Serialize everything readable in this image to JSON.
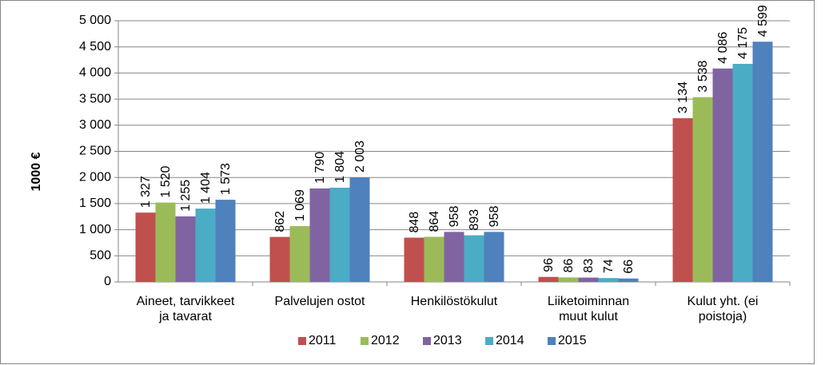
{
  "chart_data": {
    "type": "bar",
    "ylabel": "1000 €",
    "categories": [
      "Aineet, tarvikkeet\nja tavarat",
      "Palvelujen ostot",
      "Henkilöstökulut",
      "Liiketoiminnan\nmuut kulut",
      "Kulut yht. (ei\npoistoja)"
    ],
    "series": [
      {
        "name": "2011",
        "color": "#c0504d",
        "values": [
          1327,
          862,
          848,
          96,
          3134
        ],
        "value_labels": [
          "1 327",
          "862",
          "848",
          "96",
          "3 134"
        ]
      },
      {
        "name": "2012",
        "color": "#9bbb59",
        "values": [
          1520,
          1069,
          864,
          86,
          3538
        ],
        "value_labels": [
          "1 520",
          "1 069",
          "864",
          "86",
          "3 538"
        ]
      },
      {
        "name": "2013",
        "color": "#8064a2",
        "values": [
          1255,
          1790,
          958,
          83,
          4086
        ],
        "value_labels": [
          "1 255",
          "1 790",
          "958",
          "83",
          "4 086"
        ]
      },
      {
        "name": "2014",
        "color": "#4bacc6",
        "values": [
          1404,
          1804,
          893,
          74,
          4175
        ],
        "value_labels": [
          "1 404",
          "1 804",
          "893",
          "74",
          "4 175"
        ]
      },
      {
        "name": "2015",
        "color": "#4f81bd",
        "values": [
          1573,
          2003,
          958,
          66,
          4599
        ],
        "value_labels": [
          "1 573",
          "2 003",
          "958",
          "66",
          "4 599"
        ]
      }
    ],
    "ylim": [
      0,
      5000
    ],
    "yticks": [
      0,
      500,
      {
        "value": 1000,
        "label": "1 000"
      },
      {
        "value": 1500,
        "label": "1 500"
      },
      {
        "value": 2000,
        "label": "2 000"
      },
      {
        "value": 2500,
        "label": "2 500"
      },
      {
        "value": 3000,
        "label": "3 000"
      },
      {
        "value": 3500,
        "label": "3 500"
      },
      {
        "value": 4000,
        "label": "4 000"
      },
      {
        "value": 4500,
        "label": "4 500"
      },
      {
        "value": 5000,
        "label": "5 000"
      }
    ],
    "grid": true,
    "legend": "bottom"
  }
}
